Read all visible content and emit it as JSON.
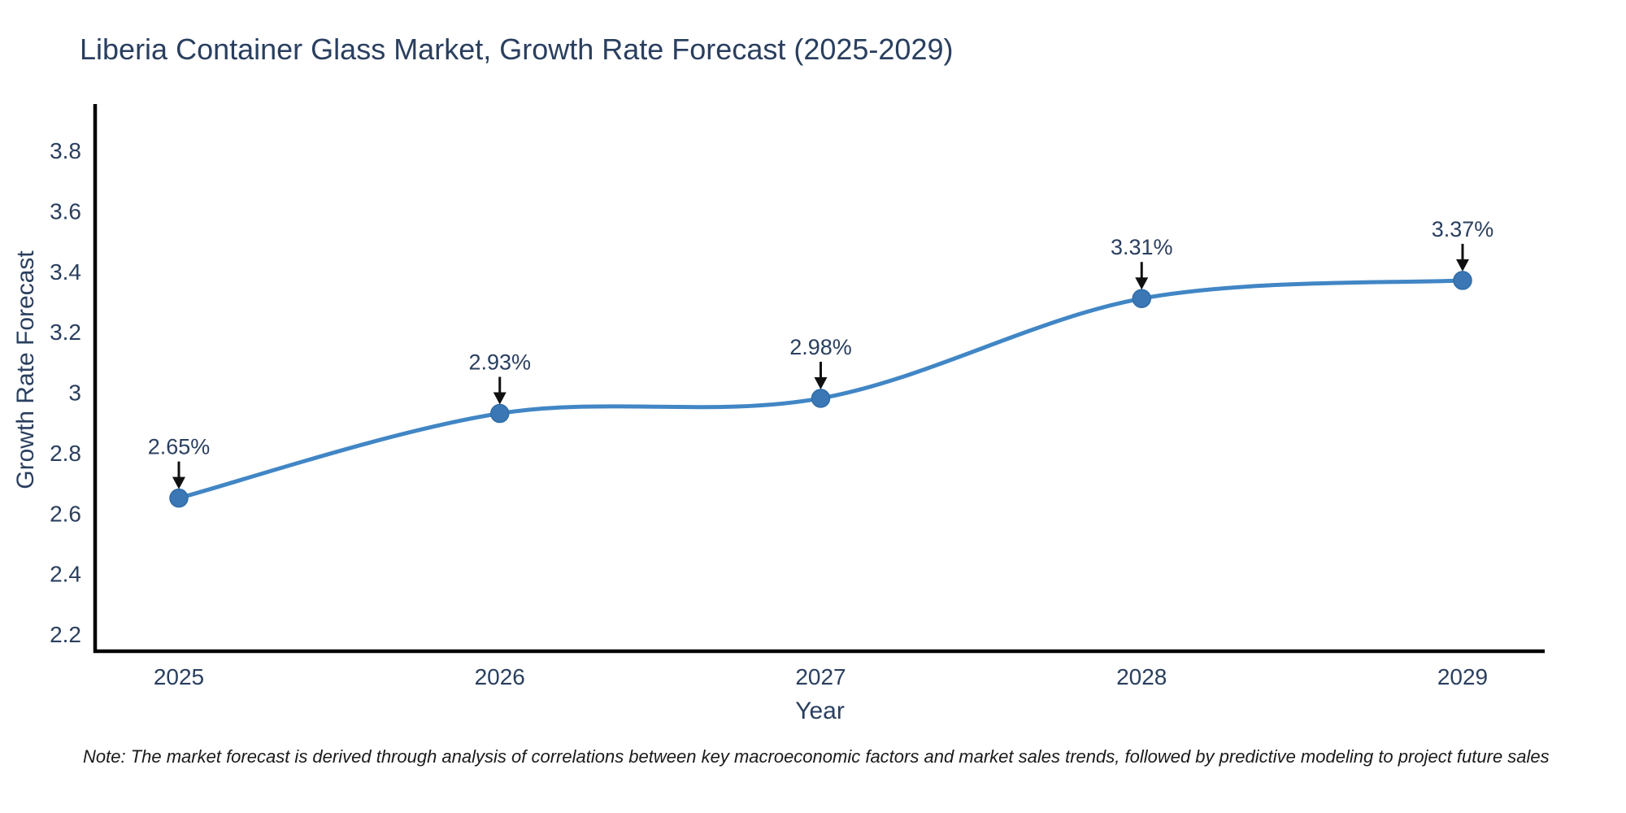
{
  "note": "Note: The market forecast is derived through analysis of correlations between key macroeconomic factors and market sales trends, followed by predictive modeling to project future sales",
  "chart_data": {
    "type": "line",
    "title": "Liberia Container Glass Market, Growth Rate Forecast (2025-2029)",
    "xlabel": "Year",
    "ylabel": "Growth Rate Forecast",
    "x": [
      2025,
      2026,
      2027,
      2028,
      2029
    ],
    "values": [
      2.65,
      2.93,
      2.98,
      3.31,
      3.37
    ],
    "point_labels": [
      "2.65%",
      "2.93%",
      "2.98%",
      "3.31%",
      "3.37%"
    ],
    "x_ticks": [
      "2025",
      "2026",
      "2027",
      "2028",
      "2029"
    ],
    "y_ticks": [
      "2.2",
      "2.4",
      "2.6",
      "2.8",
      "3",
      "3.2",
      "3.4",
      "3.6",
      "3.8"
    ],
    "ylim": [
      2.13,
      3.95
    ],
    "grid": false,
    "legend": "none",
    "line_shape": "spline",
    "colors": {
      "line": "#4186c5",
      "marker": "#3a77b4",
      "marker_edge": "#2f6da9",
      "axis": "#000000",
      "tick_text": "#2a3f5f",
      "annotation_text": "#2a3f5f",
      "arrow": "#101010",
      "title_text": "#2a3f5f"
    }
  }
}
